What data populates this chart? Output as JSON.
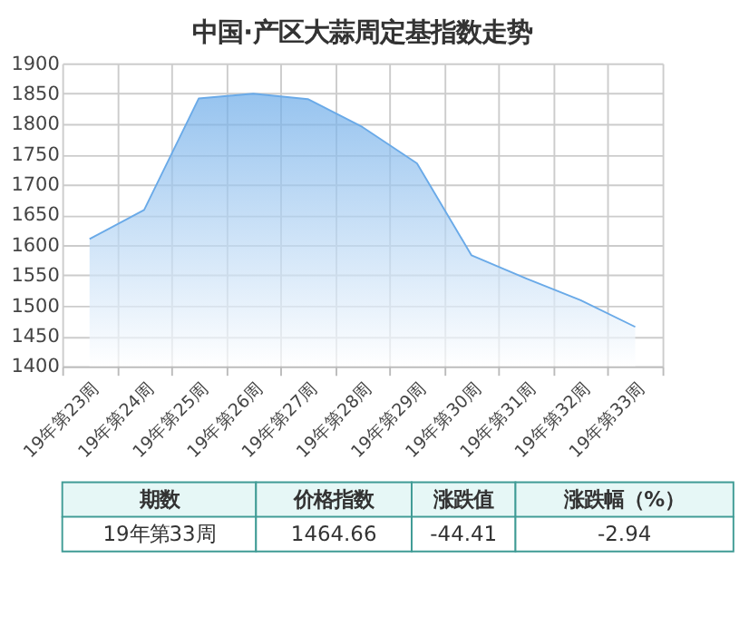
{
  "chart_data": {
    "type": "area",
    "title": "中国·产区大蒜周定基指数走势",
    "categories": [
      "19年第23周",
      "19年第24周",
      "19年第25周",
      "19年第26周",
      "19年第27周",
      "19年第28周",
      "19年第29周",
      "19年第30周",
      "19年第31周",
      "19年第32周",
      "19年第33周"
    ],
    "series": [
      {
        "color": "#6aaae8",
        "values": [
          1610,
          1658,
          1842,
          1850,
          1841,
          1795,
          1735,
          1583,
          1545,
          1509,
          1465
        ]
      }
    ],
    "ylim": [
      1400,
      1900
    ],
    "yticks": [
      1400,
      1450,
      1500,
      1550,
      1600,
      1650,
      1700,
      1750,
      1800,
      1850,
      1900
    ],
    "grid": true,
    "annotations": [
      "期数",
      "价格指数",
      "涨跌值",
      "涨跌幅（%）",
      "19年第33周",
      "1464.66",
      "-44.41",
      "-2.94"
    ]
  }
}
